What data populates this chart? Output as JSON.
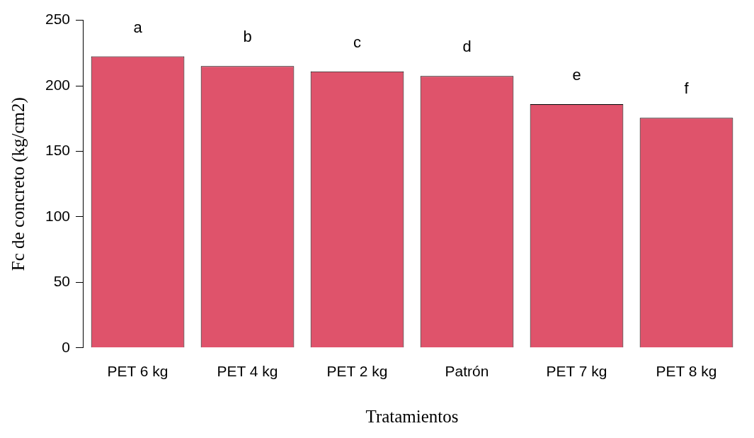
{
  "chart_data": {
    "type": "bar",
    "xlabel": "Tratamientos",
    "ylabel": "Fc de concreto (kg/cm2)",
    "categories": [
      "PET 6 kg",
      "PET 4 kg",
      "PET 2 kg",
      "Patrón",
      "PET 7 kg",
      "PET 8 kg"
    ],
    "values": [
      222.5,
      215,
      211,
      207.5,
      186,
      175.5
    ],
    "color": "#df536b",
    "ylim": [
      0,
      250
    ],
    "yticks": [
      0,
      50,
      100,
      150,
      200,
      250
    ],
    "annotations": [
      "a",
      "b",
      "c",
      "d",
      "e",
      "f"
    ]
  }
}
